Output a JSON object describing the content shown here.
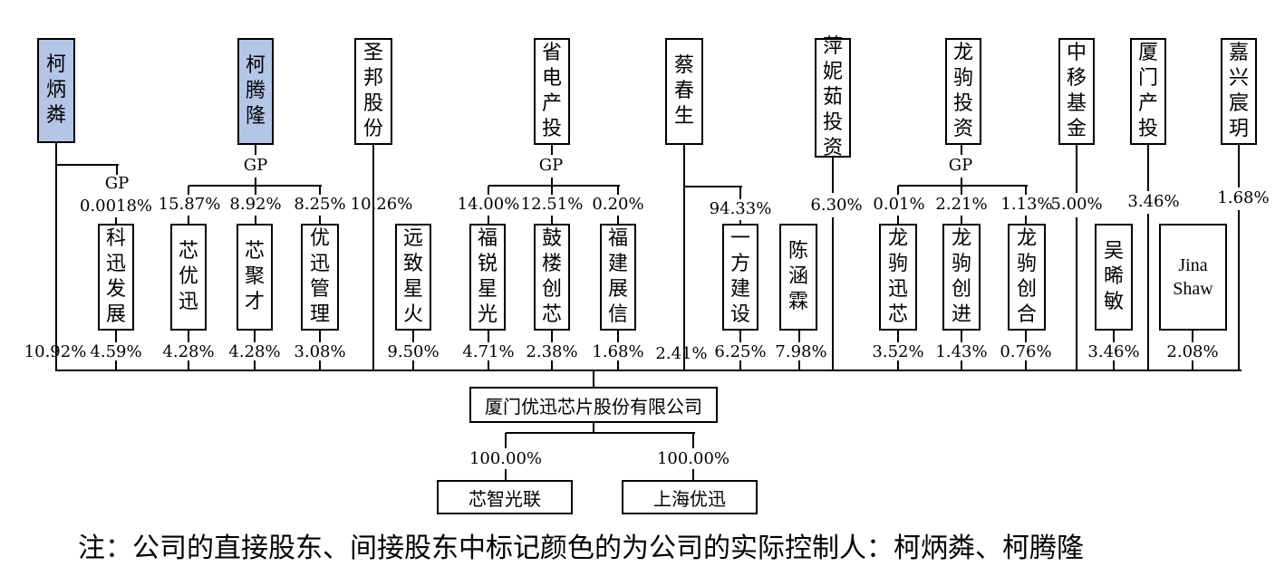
{
  "top_entities": [
    {
      "id": "kebing",
      "name": "柯炳粦",
      "controller": true
    },
    {
      "id": "keteng",
      "name": "柯腾隆",
      "controller": true
    },
    {
      "id": "shengbang",
      "name": "圣邦股份",
      "controller": false
    },
    {
      "id": "shengdian",
      "name": "省电产投",
      "controller": false
    },
    {
      "id": "cai",
      "name": "蔡春生",
      "controller": false
    },
    {
      "id": "pingni",
      "name": "萍妮茹投资",
      "controller": false
    },
    {
      "id": "longju",
      "name": "龙驹投资",
      "controller": false
    },
    {
      "id": "zhongyi",
      "name": "中移基金",
      "controller": false
    },
    {
      "id": "xiamen",
      "name": "厦门产投",
      "controller": false
    },
    {
      "id": "jiaxing",
      "name": "嘉兴宸玥",
      "controller": false
    }
  ],
  "mid_entities": [
    {
      "id": "kexun",
      "name": "科迅发展"
    },
    {
      "id": "xinyouxun",
      "name": "芯优迅"
    },
    {
      "id": "xinjucai",
      "name": "芯聚才"
    },
    {
      "id": "youxun",
      "name": "优迅管理"
    },
    {
      "id": "yuanzhi",
      "name": "远致星火"
    },
    {
      "id": "furui",
      "name": "福锐星光"
    },
    {
      "id": "gulou",
      "name": "鼓楼创芯"
    },
    {
      "id": "fujian",
      "name": "福建展信"
    },
    {
      "id": "yifang",
      "name": "一方建设"
    },
    {
      "id": "chen",
      "name": "陈涵霖"
    },
    {
      "id": "ljxx",
      "name": "龙驹迅芯"
    },
    {
      "id": "ljcj",
      "name": "龙驹创进"
    },
    {
      "id": "ljch",
      "name": "龙驹创合"
    },
    {
      "id": "wu",
      "name": "吴晞敏"
    },
    {
      "id": "jina",
      "name": "Jina Shaw"
    }
  ],
  "gp_label": "GP",
  "upper_pcts": {
    "kexun": "0.0018%",
    "xinyouxun": "15.87%",
    "xinjucai": "8.92%",
    "youxun": "8.25%",
    "shengbang": "10.26%",
    "furui": "14.00%",
    "gulou": "12.51%",
    "fujian": "0.20%",
    "yifang": "94.33%",
    "pingni": "6.30%",
    "ljxx": "0.01%",
    "ljcj": "2.21%",
    "ljch": "1.13%",
    "zhongyi": "5.00%",
    "xiamen": "3.46%",
    "jiaxing": "1.68%"
  },
  "lower_pcts": {
    "kebing": "10.92%",
    "kexun": "4.59%",
    "xinyouxun": "4.28%",
    "xinjucai": "4.28%",
    "youxun": "3.08%",
    "yuanzhi": "9.50%",
    "furui": "4.71%",
    "gulou": "2.38%",
    "fujian": "1.68%",
    "cai": "2.41%",
    "yifang": "6.25%",
    "chen": "7.98%",
    "ljxx": "3.52%",
    "ljcj": "1.43%",
    "ljch": "0.76%",
    "wu": "3.46%",
    "jina": "2.08%"
  },
  "company": {
    "name": "厦门优迅芯片股份有限公司"
  },
  "subsidiaries": [
    {
      "id": "xzgl",
      "name": "芯智光联",
      "pct": "100.00%"
    },
    {
      "id": "shyx",
      "name": "上海优迅",
      "pct": "100.00%"
    }
  ],
  "note": "注：公司的直接股东、间接股东中标记颜色的为公司的实际控制人：柯炳粦、柯腾隆",
  "colors": {
    "controller_fill": "#b4c6e7",
    "line": "#000000"
  }
}
